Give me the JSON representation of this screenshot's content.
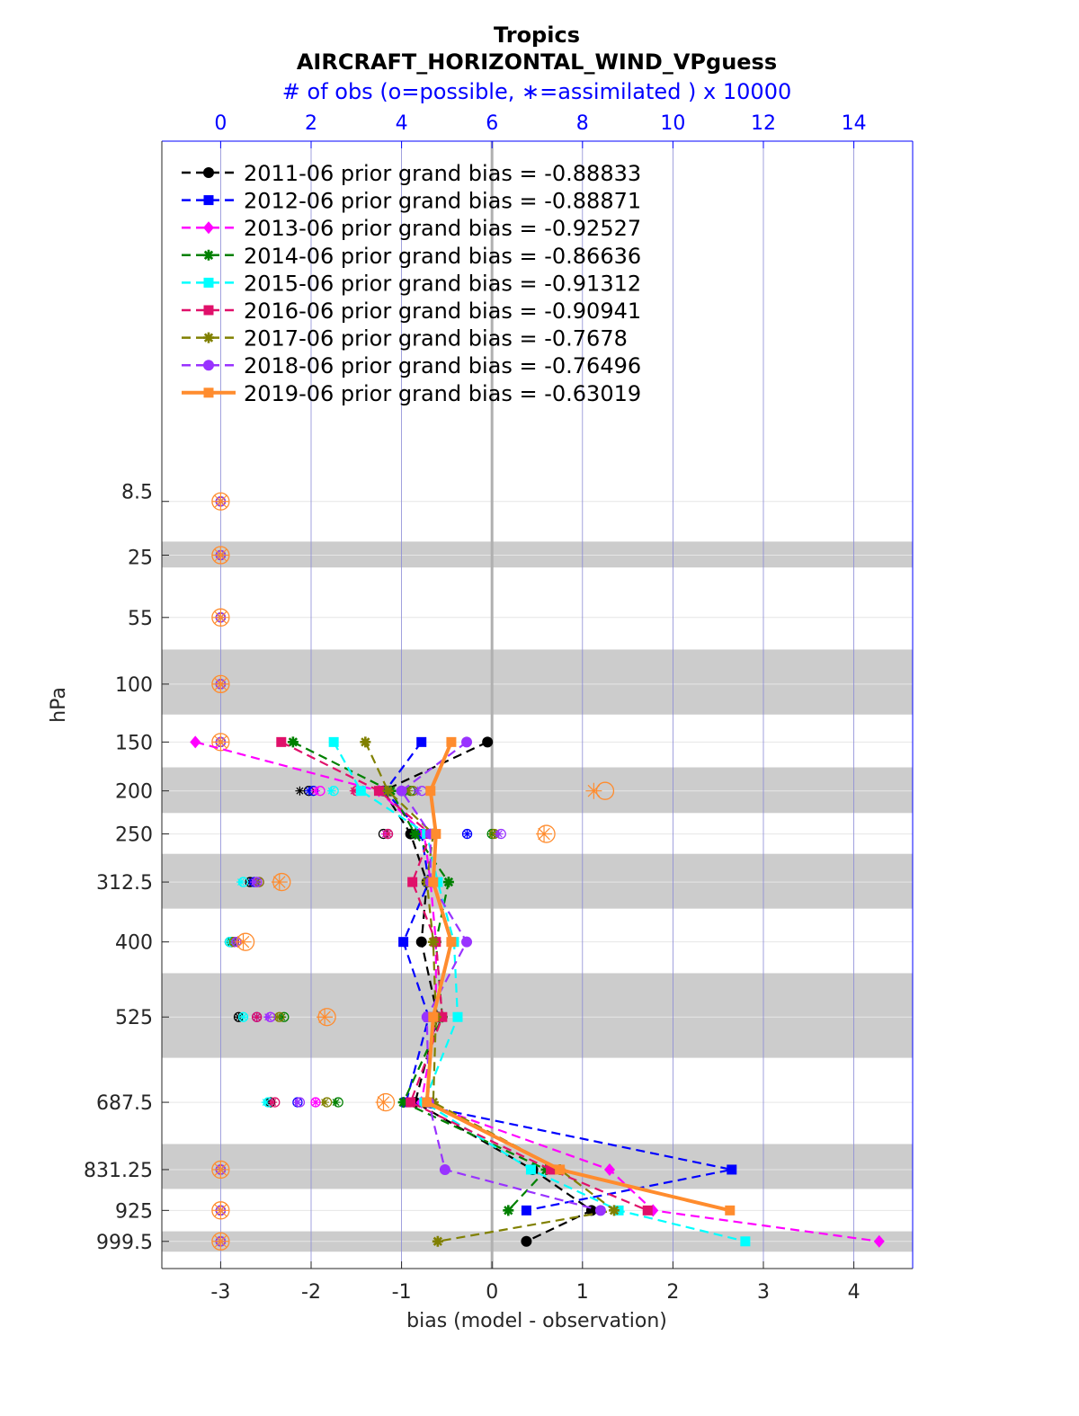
{
  "chart_data": {
    "type": "line",
    "title": "Tropics",
    "subtitle": "AIRCRAFT_HORIZONTAL_WIND_VPguess",
    "top_axis_label": "# of obs (o=possible, ∗=assimilated ) x 10000",
    "xlabel": "bias (model - observation)",
    "ylabel": "hPa",
    "xlim": [
      -3.65,
      4.65
    ],
    "top_xlim": [
      -1.3,
      15.3
    ],
    "x_ticks": [
      -3,
      -2,
      -1,
      0,
      1,
      2,
      3,
      4
    ],
    "x_tick_labels": [
      "-3",
      "-2",
      "-1",
      "0",
      "1",
      "2",
      "3",
      "4"
    ],
    "top_ticks": [
      0,
      2,
      4,
      6,
      8,
      10,
      12,
      14
    ],
    "top_tick_labels": [
      "0",
      "2",
      "4",
      "6",
      "8",
      "10",
      "12",
      "14"
    ],
    "levels": [
      8.5,
      25,
      55,
      100,
      150,
      200,
      250,
      312.5,
      400,
      525,
      687.5,
      831.25,
      925,
      999.5
    ],
    "level_labels": [
      "8.5",
      "25",
      "55",
      "100",
      "150",
      "200",
      "250",
      "312.5",
      "400",
      "525",
      "687.5",
      "831.25",
      "925",
      "999.5"
    ],
    "bands": [
      [
        20,
        30
      ],
      [
        75,
        125
      ],
      [
        175,
        225
      ],
      [
        275,
        350
      ],
      [
        450,
        600
      ],
      [
        775,
        875
      ],
      [
        975,
        1025
      ]
    ],
    "grid": true,
    "legend_placement": "top-left",
    "series": [
      {
        "name": "2011-06 prior grand bias = -0.88833",
        "color": "#000000",
        "marker": "circle",
        "levels": [
          150,
          200,
          250,
          312.5,
          400,
          525,
          687.5,
          831.25,
          925,
          999.5
        ],
        "values": [
          -0.05,
          -1.2,
          -0.9,
          -0.72,
          -0.78,
          -0.6,
          -0.85,
          0.45,
          1.1,
          0.38
        ]
      },
      {
        "name": "2012-06 prior grand bias = -0.88871",
        "color": "#0000ff",
        "marker": "square",
        "levels": [
          150,
          200,
          250,
          312.5,
          400,
          525,
          687.5,
          831.25,
          925
        ],
        "values": [
          -0.78,
          -1.18,
          -0.78,
          -0.7,
          -0.98,
          -0.7,
          -0.95,
          2.65,
          0.38
        ]
      },
      {
        "name": "2013-06 prior grand bias = -0.92527",
        "color": "#ff00ff",
        "marker": "diamond",
        "levels": [
          150,
          200,
          250,
          312.5,
          400,
          525,
          687.5,
          831.25,
          925,
          999.5
        ],
        "values": [
          -3.28,
          -1.25,
          -0.75,
          -0.68,
          -0.62,
          -0.62,
          -0.78,
          1.3,
          1.78,
          4.28
        ]
      },
      {
        "name": "2014-06 prior grand bias = -0.86636",
        "color": "#008000",
        "marker": "star",
        "levels": [
          150,
          200,
          250,
          312.5,
          400,
          525,
          687.5,
          831.25,
          925
        ],
        "values": [
          -2.2,
          -1.12,
          -0.85,
          -0.48,
          -0.62,
          -0.55,
          -0.98,
          0.6,
          0.18
        ]
      },
      {
        "name": "2015-06 prior grand bias = -0.91312",
        "color": "#00ffff",
        "marker": "square",
        "levels": [
          150,
          200,
          250,
          312.5,
          400,
          525,
          687.5,
          831.25,
          925,
          999.5
        ],
        "values": [
          -1.75,
          -1.45,
          -0.72,
          -0.6,
          -0.42,
          -0.38,
          -0.75,
          0.43,
          1.4,
          2.8
        ]
      },
      {
        "name": "2016-06 prior grand bias = -0.90941",
        "color": "#e0106a",
        "marker": "square",
        "levels": [
          150,
          200,
          250,
          312.5,
          400,
          525,
          687.5,
          831.25,
          925
        ],
        "values": [
          -2.33,
          -1.25,
          -0.68,
          -0.88,
          -0.62,
          -0.55,
          -0.9,
          0.65,
          1.72
        ]
      },
      {
        "name": "2017-06 prior grand bias = -0.7678",
        "color": "#808000",
        "marker": "asterisk",
        "levels": [
          150,
          200,
          250,
          312.5,
          400,
          525,
          687.5,
          831.25,
          925,
          999.5
        ],
        "values": [
          -1.4,
          -1.15,
          -0.65,
          -0.72,
          -0.65,
          -0.62,
          -0.65,
          0.75,
          1.35,
          -0.6
        ]
      },
      {
        "name": "2018-06 prior grand bias = -0.76496",
        "color": "#9933ff",
        "marker": "circle",
        "levels": [
          150,
          200,
          250,
          312.5,
          400,
          525,
          687.5,
          831.25,
          925
        ],
        "values": [
          -0.28,
          -1.0,
          -0.68,
          -0.68,
          -0.28,
          -0.72,
          -0.7,
          -0.52,
          1.2
        ]
      },
      {
        "name": "2019-06 prior grand bias = -0.63019",
        "color": "#ff8c2e",
        "marker": "square",
        "levels": [
          150,
          200,
          250,
          312.5,
          400,
          525,
          687.5,
          831.25,
          925
        ],
        "values": [
          -0.45,
          -0.68,
          -0.62,
          -0.65,
          -0.45,
          -0.65,
          -0.72,
          0.75,
          2.63
        ]
      }
    ],
    "obs_counts": {
      "levels": [
        8.5,
        25,
        55,
        100,
        150,
        200,
        250,
        312.5,
        400,
        525,
        687.5,
        831.25,
        925,
        999.5
      ],
      "possible": [
        [
          0,
          0,
          0,
          0,
          0,
          1.95,
          3.6,
          0.65,
          0.2,
          0.4,
          1.1,
          0,
          0,
          0
        ],
        [
          0,
          0,
          0,
          0,
          0,
          2.05,
          5.45,
          0.75,
          0.25,
          0.8,
          1.7,
          0,
          0,
          0
        ],
        [
          0,
          0,
          0,
          0,
          0,
          2.2,
          3.7,
          0.85,
          0.3,
          1.1,
          2.1,
          0,
          0,
          0
        ],
        [
          0,
          0,
          0,
          0,
          0,
          4.2,
          6.0,
          0.8,
          0.25,
          1.4,
          2.6,
          0,
          0,
          0
        ],
        [
          0,
          0,
          0,
          0,
          0,
          2.5,
          3.7,
          0.5,
          0.2,
          0.5,
          1.05,
          0,
          0,
          0
        ],
        [
          0,
          0,
          0,
          0,
          0,
          3.0,
          3.7,
          0.8,
          0.3,
          0.8,
          1.2,
          0,
          0,
          0
        ],
        [
          0,
          0,
          0,
          0,
          0,
          4.25,
          6.05,
          0.85,
          0.3,
          1.3,
          2.35,
          0,
          0,
          0
        ],
        [
          0,
          0,
          0,
          0,
          0,
          4.45,
          6.2,
          0.8,
          0.35,
          1.1,
          1.75,
          0,
          0,
          0
        ],
        [
          0,
          0,
          0,
          0,
          0,
          8.5,
          7.2,
          1.35,
          0.55,
          2.35,
          3.65,
          0,
          0,
          0
        ]
      ],
      "assimilated": [
        [
          0,
          0,
          0,
          0,
          0,
          1.75,
          3.65,
          0.65,
          0.2,
          0.4,
          1.05,
          0,
          0,
          0
        ],
        [
          0,
          0,
          0,
          0,
          0,
          1.95,
          5.45,
          0.7,
          0.25,
          0.8,
          1.7,
          0,
          0,
          0
        ],
        [
          0,
          0,
          0,
          0,
          0,
          2.1,
          3.65,
          0.8,
          0.3,
          1.05,
          2.1,
          0,
          0,
          0
        ],
        [
          0,
          0,
          0,
          0,
          0,
          4.1,
          6.0,
          0.75,
          0.25,
          1.35,
          2.55,
          0,
          0,
          0
        ],
        [
          0,
          0,
          0,
          0,
          0,
          2.45,
          3.7,
          0.45,
          0.2,
          0.5,
          1.0,
          0,
          0,
          0
        ],
        [
          0,
          0,
          0,
          0,
          0,
          2.95,
          3.7,
          0.75,
          0.3,
          0.8,
          1.15,
          0,
          0,
          0
        ],
        [
          0,
          0,
          0,
          0,
          0,
          4.15,
          6.05,
          0.8,
          0.3,
          1.25,
          2.3,
          0,
          0,
          0
        ],
        [
          0,
          0,
          0,
          0,
          0,
          4.35,
          6.15,
          0.75,
          0.35,
          1.05,
          1.7,
          0,
          0,
          0
        ],
        [
          0,
          0,
          0,
          0,
          0,
          8.25,
          7.15,
          1.3,
          0.5,
          2.3,
          3.6,
          0,
          0,
          0
        ]
      ]
    }
  }
}
